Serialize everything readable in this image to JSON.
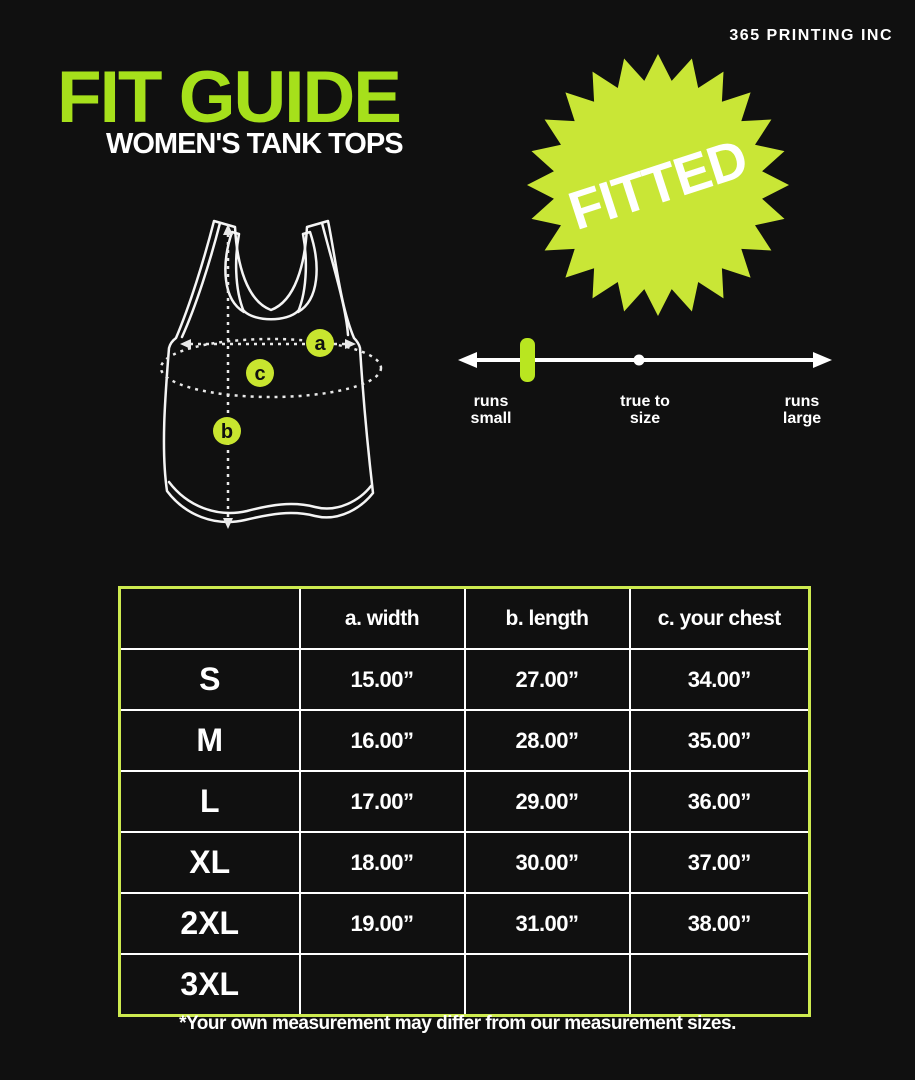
{
  "brand": "365 PRINTING INC",
  "header": {
    "title": "FIT GUIDE",
    "subtitle": "WOMEN'S TANK TOPS"
  },
  "badge": {
    "label": "FITTED"
  },
  "diagram": {
    "marker_a": "a",
    "marker_b": "b",
    "marker_c": "c"
  },
  "fit_scale": {
    "left_label": {
      "line1": "runs",
      "line2": "small"
    },
    "center_label": {
      "line1": "true to",
      "line2": "size"
    },
    "right_label": {
      "line1": "runs",
      "line2": "large"
    },
    "selected": "runs small"
  },
  "size_table": {
    "columns": {
      "size": "",
      "width": "a. width",
      "length": "b. length",
      "chest": "c. your chest"
    },
    "rows": [
      {
        "size": "S",
        "width": "15.00”",
        "length": "27.00”",
        "chest": "34.00”"
      },
      {
        "size": "M",
        "width": "16.00”",
        "length": "28.00”",
        "chest": "35.00”"
      },
      {
        "size": "L",
        "width": "17.00”",
        "length": "29.00”",
        "chest": "36.00”"
      },
      {
        "size": "XL",
        "width": "18.00”",
        "length": "30.00”",
        "chest": "37.00”"
      },
      {
        "size": "2XL",
        "width": "19.00”",
        "length": "31.00”",
        "chest": "38.00”"
      },
      {
        "size": "3XL",
        "width": "",
        "length": "",
        "chest": ""
      }
    ]
  },
  "footnote": "*Your own measurement may differ from our measurement sizes.",
  "colors": {
    "background": "#101010",
    "title_green": "#a6e01b",
    "badge_green": "#c9e636",
    "marker_green": "#b9e620",
    "circle_green": "#c8e52f",
    "table_border_green": "#cdea4f",
    "text_white": "#ffffff"
  }
}
